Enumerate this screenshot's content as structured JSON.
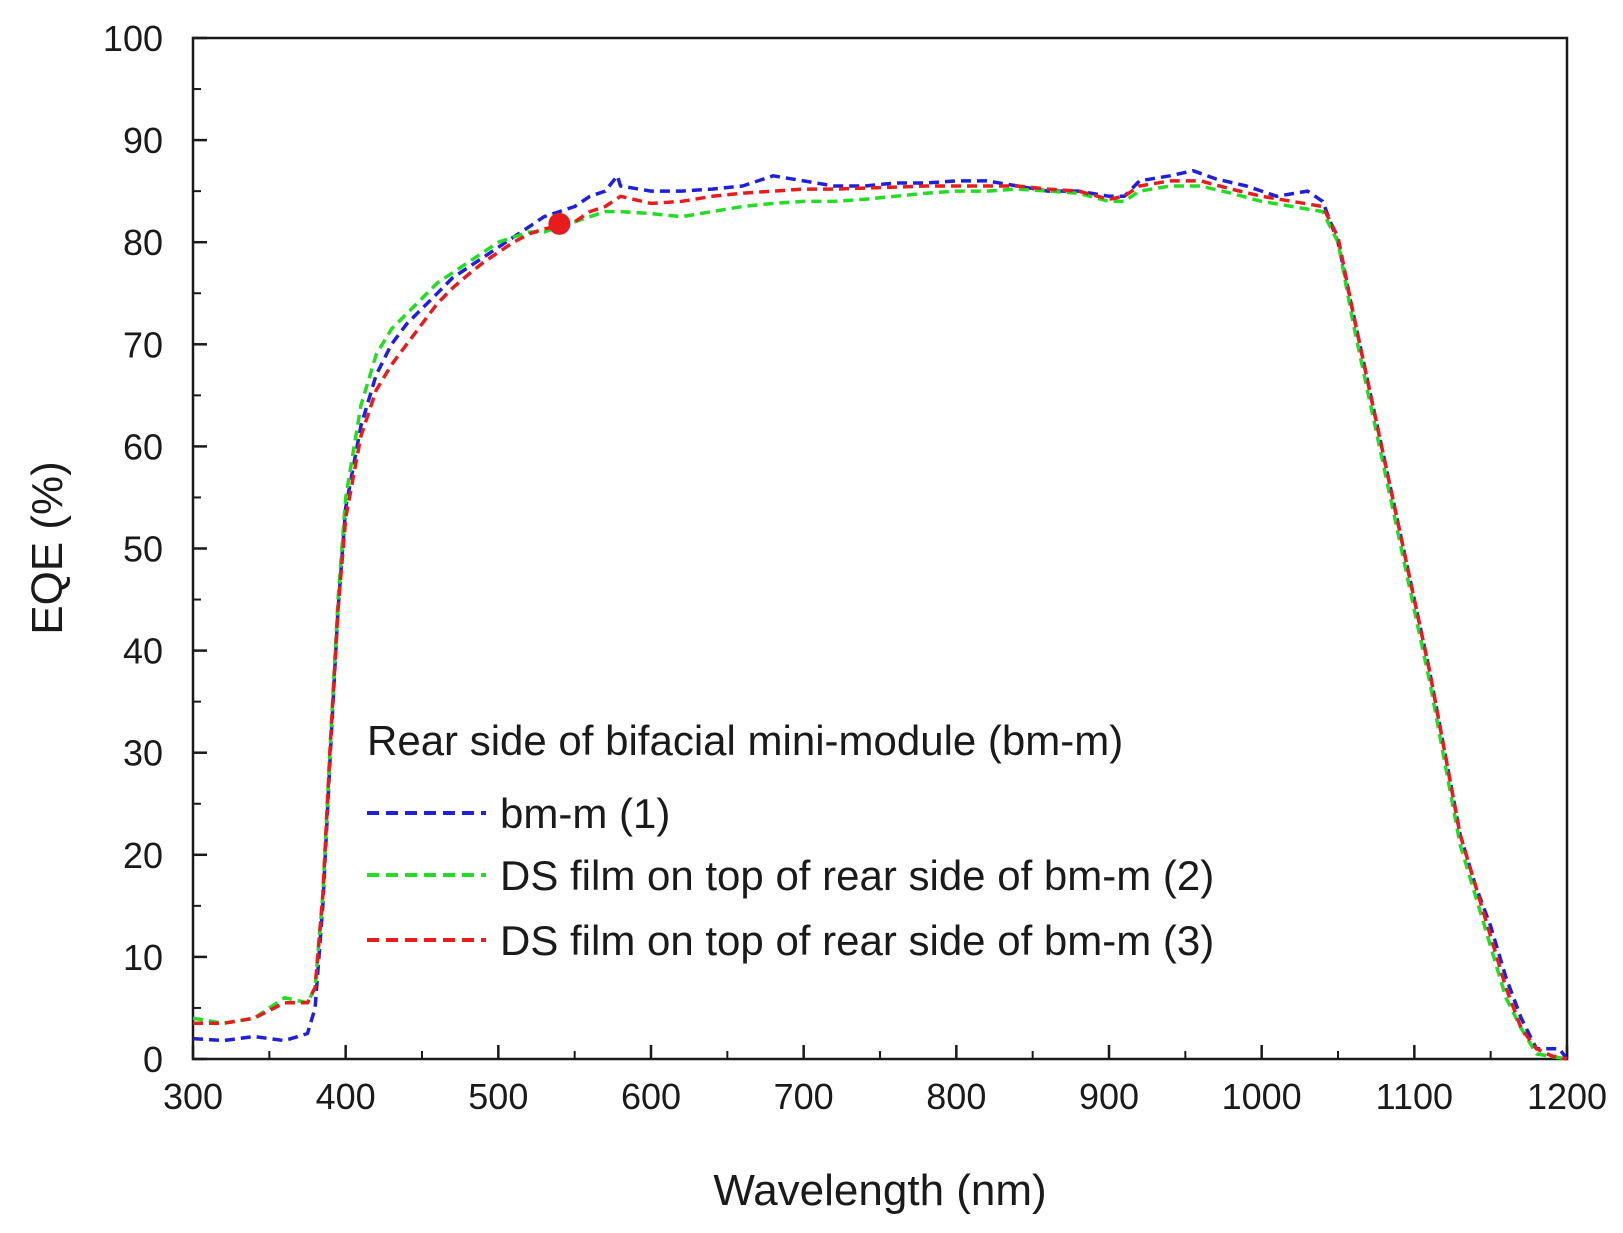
{
  "chart_data": {
    "type": "line",
    "title": "",
    "xlabel": "Wavelength (nm)",
    "ylabel": "EQE (%)",
    "xlim": [
      300,
      1200
    ],
    "ylim": [
      0,
      100
    ],
    "xticks": [
      300,
      400,
      500,
      600,
      700,
      800,
      900,
      1000,
      1100,
      1200
    ],
    "yticks": [
      0,
      10,
      20,
      30,
      40,
      50,
      60,
      70,
      80,
      90,
      100
    ],
    "grid": false,
    "legend_title": "Rear side of bifacial mini-module (bm-m)",
    "legend_position": "bottom-center",
    "series": [
      {
        "name": "bm-m (1)",
        "color": "#1f1fe0",
        "style": "dashed",
        "points": [
          [
            300,
            2
          ],
          [
            320,
            1.8
          ],
          [
            340,
            2.2
          ],
          [
            360,
            1.8
          ],
          [
            375,
            2.5
          ],
          [
            380,
            5
          ],
          [
            385,
            15
          ],
          [
            390,
            30
          ],
          [
            395,
            44
          ],
          [
            400,
            54
          ],
          [
            410,
            62
          ],
          [
            420,
            67
          ],
          [
            430,
            70
          ],
          [
            440,
            72
          ],
          [
            450,
            73.5
          ],
          [
            460,
            75
          ],
          [
            470,
            76.5
          ],
          [
            480,
            77.5
          ],
          [
            490,
            78.5
          ],
          [
            500,
            79.5
          ],
          [
            510,
            80.5
          ],
          [
            520,
            81.5
          ],
          [
            530,
            82.5
          ],
          [
            540,
            83
          ],
          [
            550,
            83.5
          ],
          [
            560,
            84.5
          ],
          [
            570,
            85
          ],
          [
            578,
            86.5
          ],
          [
            580,
            85.5
          ],
          [
            600,
            85
          ],
          [
            620,
            85
          ],
          [
            640,
            85.2
          ],
          [
            660,
            85.5
          ],
          [
            680,
            86.5
          ],
          [
            700,
            86
          ],
          [
            720,
            85.5
          ],
          [
            740,
            85.5
          ],
          [
            760,
            85.8
          ],
          [
            780,
            85.8
          ],
          [
            800,
            86
          ],
          [
            820,
            86
          ],
          [
            840,
            85.5
          ],
          [
            860,
            85
          ],
          [
            880,
            85
          ],
          [
            900,
            84.5
          ],
          [
            910,
            84.5
          ],
          [
            920,
            86
          ],
          [
            940,
            86.5
          ],
          [
            955,
            87
          ],
          [
            970,
            86.2
          ],
          [
            990,
            85.5
          ],
          [
            1010,
            84.5
          ],
          [
            1030,
            85
          ],
          [
            1040,
            84
          ],
          [
            1050,
            80
          ],
          [
            1060,
            73
          ],
          [
            1070,
            66
          ],
          [
            1080,
            59
          ],
          [
            1090,
            52
          ],
          [
            1100,
            45
          ],
          [
            1110,
            38
          ],
          [
            1120,
            30
          ],
          [
            1130,
            22
          ],
          [
            1140,
            17
          ],
          [
            1150,
            13
          ],
          [
            1160,
            8
          ],
          [
            1170,
            4
          ],
          [
            1180,
            1
          ],
          [
            1195,
            1
          ],
          [
            1200,
            0
          ]
        ]
      },
      {
        "name": "DS film on top of rear side of bm-m (2)",
        "color": "#22dd22",
        "style": "dashed",
        "points": [
          [
            300,
            4
          ],
          [
            320,
            3.5
          ],
          [
            340,
            4
          ],
          [
            360,
            6
          ],
          [
            375,
            5.5
          ],
          [
            380,
            7
          ],
          [
            385,
            16
          ],
          [
            390,
            31
          ],
          [
            395,
            45
          ],
          [
            400,
            55
          ],
          [
            410,
            64
          ],
          [
            420,
            69
          ],
          [
            430,
            71.5
          ],
          [
            440,
            73
          ],
          [
            450,
            74.5
          ],
          [
            460,
            76
          ],
          [
            470,
            77
          ],
          [
            480,
            78
          ],
          [
            490,
            79
          ],
          [
            500,
            80
          ],
          [
            510,
            80.5
          ],
          [
            520,
            81
          ],
          [
            530,
            81
          ],
          [
            540,
            81.5
          ],
          [
            550,
            82
          ],
          [
            560,
            82.5
          ],
          [
            570,
            83
          ],
          [
            580,
            83
          ],
          [
            600,
            82.8
          ],
          [
            620,
            82.5
          ],
          [
            640,
            83
          ],
          [
            660,
            83.5
          ],
          [
            680,
            83.8
          ],
          [
            700,
            84
          ],
          [
            720,
            84
          ],
          [
            740,
            84.2
          ],
          [
            760,
            84.5
          ],
          [
            780,
            84.8
          ],
          [
            800,
            85
          ],
          [
            820,
            85
          ],
          [
            840,
            85.2
          ],
          [
            860,
            85
          ],
          [
            880,
            84.8
          ],
          [
            900,
            84
          ],
          [
            910,
            84
          ],
          [
            920,
            85
          ],
          [
            940,
            85.5
          ],
          [
            960,
            85.5
          ],
          [
            980,
            84.8
          ],
          [
            1000,
            84
          ],
          [
            1020,
            83.5
          ],
          [
            1040,
            83
          ],
          [
            1050,
            80
          ],
          [
            1060,
            72
          ],
          [
            1070,
            65
          ],
          [
            1080,
            58
          ],
          [
            1090,
            51
          ],
          [
            1100,
            44
          ],
          [
            1110,
            37
          ],
          [
            1120,
            29
          ],
          [
            1130,
            21
          ],
          [
            1140,
            16
          ],
          [
            1150,
            11
          ],
          [
            1160,
            6
          ],
          [
            1170,
            3
          ],
          [
            1180,
            0.5
          ],
          [
            1200,
            0
          ]
        ]
      },
      {
        "name": "DS film on top of rear side of bm-m (3)",
        "color": "#e81c1c",
        "style": "dashed",
        "points": [
          [
            300,
            3.5
          ],
          [
            320,
            3.5
          ],
          [
            340,
            4
          ],
          [
            360,
            5.5
          ],
          [
            375,
            5.5
          ],
          [
            380,
            7
          ],
          [
            385,
            16
          ],
          [
            390,
            31
          ],
          [
            395,
            44
          ],
          [
            400,
            53
          ],
          [
            410,
            61
          ],
          [
            420,
            65.5
          ],
          [
            430,
            68
          ],
          [
            440,
            70
          ],
          [
            450,
            72
          ],
          [
            460,
            74
          ],
          [
            470,
            75.5
          ],
          [
            480,
            76.8
          ],
          [
            490,
            78
          ],
          [
            500,
            79
          ],
          [
            510,
            80
          ],
          [
            520,
            80.8
          ],
          [
            530,
            81.3
          ],
          [
            540,
            81.6
          ],
          [
            550,
            82
          ],
          [
            560,
            83
          ],
          [
            570,
            83.5
          ],
          [
            580,
            84.5
          ],
          [
            600,
            83.8
          ],
          [
            620,
            84
          ],
          [
            640,
            84.5
          ],
          [
            660,
            84.8
          ],
          [
            680,
            85
          ],
          [
            700,
            85.2
          ],
          [
            720,
            85.2
          ],
          [
            740,
            85.3
          ],
          [
            760,
            85.4
          ],
          [
            780,
            85.5
          ],
          [
            800,
            85.5
          ],
          [
            820,
            85.5
          ],
          [
            840,
            85.5
          ],
          [
            860,
            85.2
          ],
          [
            880,
            85
          ],
          [
            900,
            84.2
          ],
          [
            910,
            84.5
          ],
          [
            920,
            85.5
          ],
          [
            940,
            86
          ],
          [
            960,
            86
          ],
          [
            980,
            85.2
          ],
          [
            1000,
            84.5
          ],
          [
            1020,
            84
          ],
          [
            1040,
            83.5
          ],
          [
            1050,
            80.5
          ],
          [
            1060,
            73
          ],
          [
            1070,
            66
          ],
          [
            1080,
            59
          ],
          [
            1090,
            52
          ],
          [
            1100,
            45
          ],
          [
            1110,
            38
          ],
          [
            1120,
            30
          ],
          [
            1130,
            22
          ],
          [
            1140,
            17
          ],
          [
            1150,
            12
          ],
          [
            1160,
            7
          ],
          [
            1170,
            3
          ],
          [
            1180,
            1
          ],
          [
            1190,
            0.3
          ],
          [
            1200,
            0
          ]
        ]
      }
    ],
    "marker": {
      "x": 540,
      "y": 81.8,
      "color": "#e81c1c"
    }
  }
}
